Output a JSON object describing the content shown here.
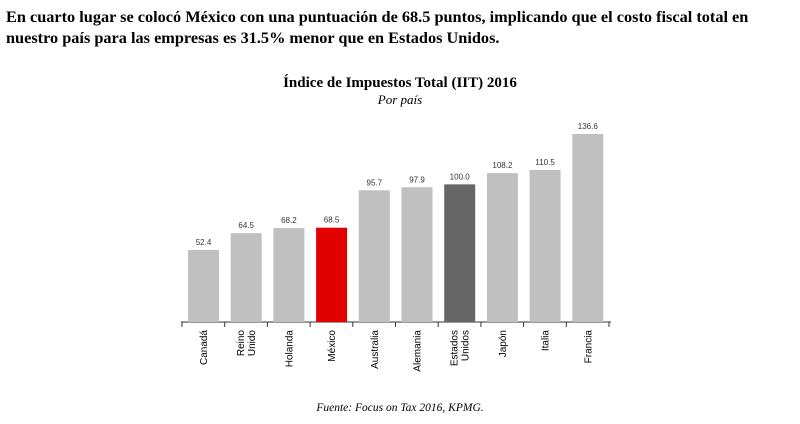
{
  "intro_text": "En cuarto lugar se colocó México con una puntuación de 68.5 puntos, implicando que el costo fiscal total en nuestro país para las empresas es 31.5% menor que en Estados Unidos.",
  "source": "Fuente: Focus on Tax 2016, KPMG.",
  "colors": {
    "default_bar": "#c0c0c0",
    "highlight_mexico": "#e00000",
    "highlight_usa": "#666666"
  },
  "chart_data": {
    "type": "bar",
    "title": "Índice de Impuestos Total (IIT) 2016",
    "subtitle": "Por país",
    "categories": [
      [
        "Canadá"
      ],
      [
        "Reino",
        "Unido"
      ],
      [
        "Holanda"
      ],
      [
        "México"
      ],
      [
        "Australia"
      ],
      [
        "Alemania"
      ],
      [
        "Estados",
        "Unidos"
      ],
      [
        "Japón"
      ],
      [
        "Italia"
      ],
      [
        "Francia"
      ]
    ],
    "values": [
      52.4,
      64.5,
      68.2,
      68.5,
      95.7,
      97.9,
      100.0,
      108.2,
      110.5,
      136.6
    ],
    "value_labels": [
      "52.4",
      "64.5",
      "68.2",
      "68.5",
      "95.7",
      "97.9",
      "100.0",
      "108.2",
      "110.5",
      "136.6"
    ],
    "bar_colors": [
      "#c0c0c0",
      "#c0c0c0",
      "#c0c0c0",
      "#e00000",
      "#c0c0c0",
      "#c0c0c0",
      "#666666",
      "#c0c0c0",
      "#c0c0c0",
      "#c0c0c0"
    ],
    "ylim": [
      0,
      140
    ],
    "grid": false,
    "legend": "none"
  }
}
